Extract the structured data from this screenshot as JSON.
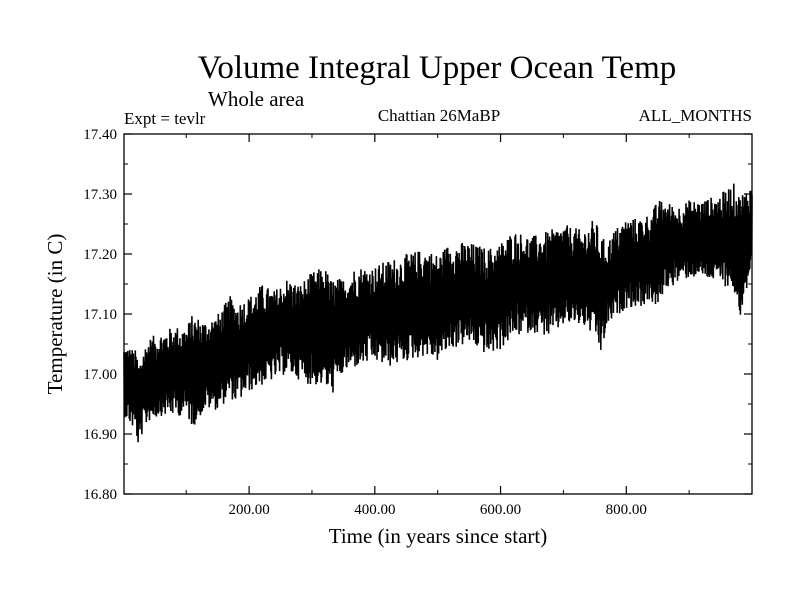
{
  "chart_data": {
    "type": "line",
    "title": "Volume Integral Upper Ocean Temp",
    "subtitle": "Whole area",
    "annotations": {
      "left": "Expt = tevlr",
      "center": "Chattian  26MaBP",
      "right": "ALL_MONTHS"
    },
    "xlabel": "Time (in years since start)",
    "ylabel": "Temperature (in C)",
    "xlim": [
      1,
      1000
    ],
    "ylim": [
      16.8,
      17.4
    ],
    "xticks": [
      200,
      400,
      600,
      800
    ],
    "xtick_labels": [
      "200.00",
      "400.00",
      "600.00",
      "800.00"
    ],
    "yticks": [
      16.8,
      16.9,
      17.0,
      17.1,
      17.2,
      17.3,
      17.4
    ],
    "ytick_labels": [
      "16.80",
      "16.90",
      "17.00",
      "17.10",
      "17.20",
      "17.30",
      "17.40"
    ],
    "grid": false,
    "color": "#000000",
    "series": [
      {
        "name": "Volume integral upper ocean temperature",
        "band_x": [
          1,
          20,
          25,
          30,
          40,
          60,
          80,
          100,
          110,
          130,
          150,
          170,
          180,
          200,
          220,
          240,
          260,
          280,
          300,
          320,
          330,
          350,
          370,
          400,
          420,
          450,
          480,
          500,
          520,
          550,
          580,
          600,
          620,
          650,
          680,
          700,
          730,
          750,
          760,
          770,
          780,
          800,
          820,
          840,
          850,
          860,
          880,
          900,
          920,
          950,
          970,
          980,
          990,
          1000
        ],
        "band_low": [
          16.93,
          16.9,
          16.87,
          16.9,
          16.92,
          16.93,
          16.93,
          16.93,
          16.91,
          16.94,
          16.94,
          16.96,
          16.95,
          16.97,
          16.98,
          16.99,
          17.0,
          16.99,
          16.98,
          16.98,
          16.96,
          17.0,
          17.01,
          17.02,
          17.01,
          17.02,
          17.03,
          17.02,
          17.04,
          17.05,
          17.03,
          17.04,
          17.06,
          17.07,
          17.06,
          17.08,
          17.08,
          17.06,
          17.03,
          17.08,
          17.09,
          17.11,
          17.11,
          17.12,
          17.1,
          17.14,
          17.15,
          17.16,
          17.16,
          17.15,
          17.14,
          17.09,
          17.13,
          17.17
        ],
        "band_high": [
          17.05,
          17.04,
          17.02,
          17.04,
          17.06,
          17.07,
          17.08,
          17.08,
          17.1,
          17.09,
          17.1,
          17.13,
          17.12,
          17.13,
          17.15,
          17.14,
          17.16,
          17.15,
          17.17,
          17.18,
          17.16,
          17.16,
          17.18,
          17.18,
          17.19,
          17.2,
          17.21,
          17.2,
          17.22,
          17.22,
          17.21,
          17.22,
          17.24,
          17.23,
          17.24,
          17.25,
          17.24,
          17.26,
          17.23,
          17.22,
          17.24,
          17.26,
          17.26,
          17.27,
          17.29,
          17.29,
          17.28,
          17.29,
          17.29,
          17.3,
          17.32,
          17.3,
          17.31,
          17.32
        ]
      }
    ]
  }
}
